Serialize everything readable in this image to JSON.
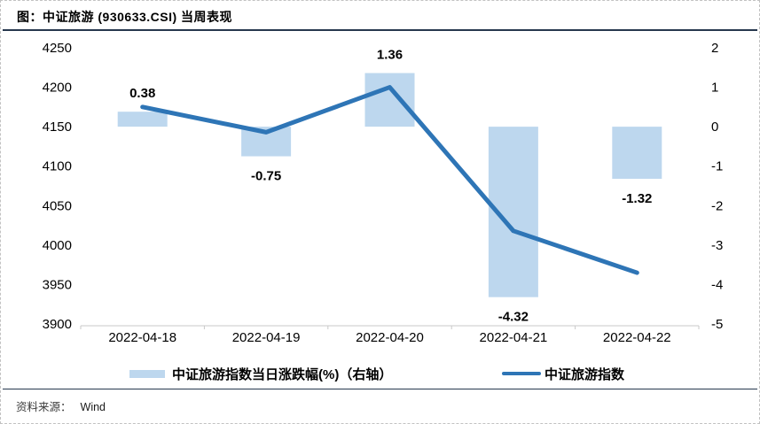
{
  "title": "图：中证旅游 (930633.CSI) 当周表现",
  "source": {
    "label": "资料来源：",
    "value": "Wind"
  },
  "colors": {
    "bar": "#bdd7ee",
    "line": "#2e75b6",
    "data_label": "#ff0000",
    "rule": "#26384e",
    "axis_line": "#c9c9c9",
    "text": "#000000"
  },
  "legend": [
    {
      "label": "中证旅游指数当日涨跌幅(%)（右轴）",
      "type": "bar"
    },
    {
      "label": "中证旅游指数",
      "type": "line"
    }
  ],
  "chart_data": {
    "type": "combo-bar-line",
    "categories": [
      "2022-04-18",
      "2022-04-19",
      "2022-04-20",
      "2022-04-21",
      "2022-04-22"
    ],
    "series": [
      {
        "name": "中证旅游指数当日涨跌幅(%)（右轴）",
        "type": "bar",
        "axis": "right",
        "values": [
          0.38,
          -0.75,
          1.36,
          -4.32,
          -1.32
        ],
        "labels": [
          "0.38",
          "-0.75",
          "1.36",
          "-4.32",
          "-1.32"
        ]
      },
      {
        "name": "中证旅游指数",
        "type": "line",
        "axis": "left",
        "values": [
          4175,
          4143,
          4200,
          4018,
          3965
        ]
      }
    ],
    "left_axis": {
      "min": 3900,
      "max": 4250,
      "ticks": [
        4250,
        4200,
        4150,
        4100,
        4050,
        4000,
        3950,
        3900
      ]
    },
    "right_axis": {
      "min": -5,
      "max": 2,
      "ticks": [
        2,
        1,
        0,
        -1,
        -2,
        -3,
        -4,
        -5
      ]
    },
    "grid": false,
    "legend_position": "bottom"
  }
}
